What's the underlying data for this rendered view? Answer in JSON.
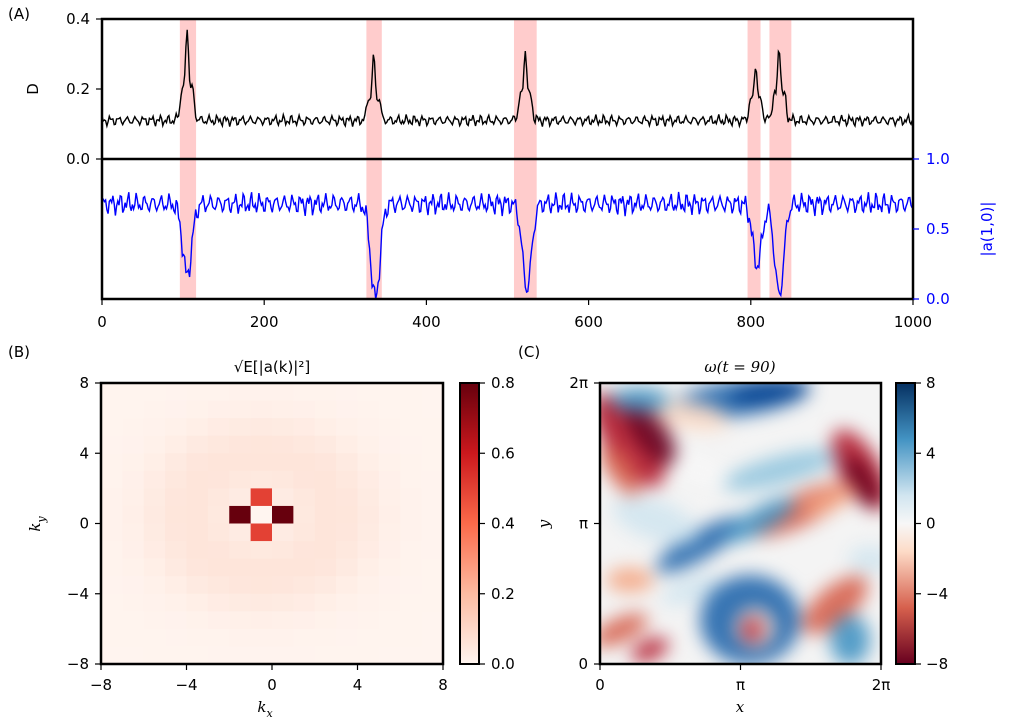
{
  "panels": {
    "a": {
      "letter": "(A)",
      "ylabel_left": "D",
      "ylabel_right": "|a(1,0)|",
      "xlim": [
        0,
        1000
      ],
      "ylim_left": [
        0,
        0.4
      ],
      "ylim_right": [
        0,
        1.0
      ],
      "x_ticks": [
        "0",
        "200",
        "400",
        "600",
        "800",
        "1000"
      ],
      "y_left_ticks": [
        "0.0",
        "0.2",
        "0.4"
      ],
      "y_right_ticks": [
        "0.0",
        "0.5",
        "1.0"
      ]
    },
    "b": {
      "letter": "(B)",
      "title": "√E[|a(k)|²]",
      "xlabel": "k",
      "xlabel_sub": "x",
      "ylabel": "k",
      "ylabel_sub": "y",
      "ticks": [
        "−8",
        "−4",
        "0",
        "4",
        "8"
      ],
      "colorbar_ticks": [
        "0.0",
        "0.2",
        "0.4",
        "0.6",
        "0.8"
      ]
    },
    "c": {
      "letter": "(C)",
      "title": "ω(t = 90)",
      "xlabel": "x",
      "ylabel": "y",
      "ticks": [
        "0",
        "π",
        "2π"
      ],
      "colorbar_ticks": [
        "−8",
        "−4",
        "0",
        "4",
        "8"
      ]
    }
  },
  "colors": {
    "D_line": "#000000",
    "a10_line": "#0000ff",
    "events": "#ffcccc",
    "map_red": "#67001f",
    "map_blue": "#053061"
  },
  "chart_data": [
    {
      "type": "line",
      "panel": "A",
      "xlim": [
        0,
        1000
      ],
      "series": [
        {
          "name": "D",
          "axis": "left",
          "ylim": [
            0,
            0.4
          ],
          "baseline": 0.11,
          "peaks": [
            {
              "t": 105,
              "value": 0.37
            },
            {
              "t": 335,
              "value": 0.29
            },
            {
              "t": 522,
              "value": 0.31
            },
            {
              "t": 806,
              "value": 0.27
            },
            {
              "t": 835,
              "value": 0.32
            }
          ]
        },
        {
          "name": "|a(1,0)|",
          "axis": "right",
          "ylim": [
            0,
            1.0
          ],
          "baseline": 0.68,
          "dips": [
            {
              "t": 105,
              "value": 0.17
            },
            {
              "t": 337,
              "value": 0.0
            },
            {
              "t": 524,
              "value": 0.08
            },
            {
              "t": 808,
              "value": 0.24
            },
            {
              "t": 835,
              "value": 0.03
            }
          ]
        }
      ],
      "shaded_intervals": [
        [
          96,
          116
        ],
        [
          326,
          345
        ],
        [
          508,
          536
        ],
        [
          796,
          812
        ],
        [
          823,
          850
        ]
      ]
    },
    {
      "type": "heatmap",
      "panel": "B",
      "xlim": [
        -8,
        8
      ],
      "ylim": [
        -8,
        8
      ],
      "clim": [
        0,
        0.8
      ],
      "colormap": "Reds",
      "notable_cells": [
        {
          "kx": -1,
          "ky": 0,
          "value": 0.8
        },
        {
          "kx": 1,
          "ky": 0,
          "value": 0.8
        },
        {
          "kx": 0,
          "ky": 1,
          "value": 0.5
        },
        {
          "kx": 0,
          "ky": -1,
          "value": 0.5
        },
        {
          "kx": 0,
          "ky": 0,
          "value": 0.0
        }
      ]
    },
    {
      "type": "heatmap",
      "panel": "C",
      "xlim": [
        0,
        6.2832
      ],
      "ylim": [
        0,
        6.2832
      ],
      "clim": [
        -8,
        8
      ],
      "colormap": "RdBu"
    }
  ]
}
